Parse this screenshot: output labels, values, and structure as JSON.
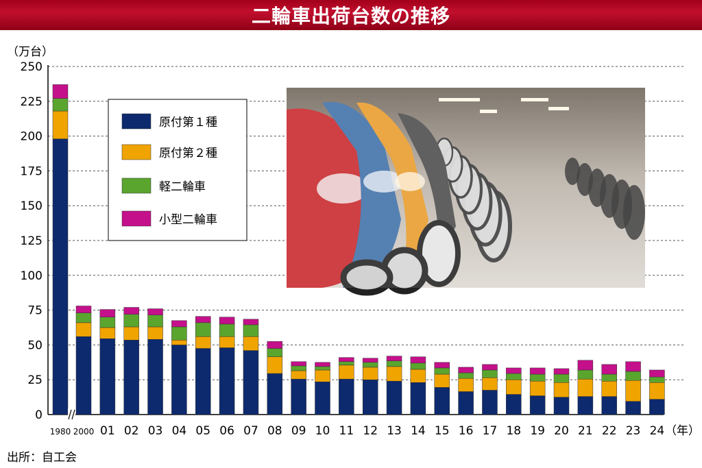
{
  "header": {
    "title": "二輪車出荷台数の推移"
  },
  "footer": {
    "source": "出所：自工会"
  },
  "chart_data": {
    "type": "bar",
    "stacked": true,
    "title": "二輪車出荷台数の推移",
    "yunit": "（万台）",
    "xunit": "（年）",
    "ylim": [
      0,
      250
    ],
    "yticks": [
      0,
      25,
      50,
      75,
      100,
      125,
      150,
      175,
      200,
      225,
      250
    ],
    "grid": true,
    "axis_break": "after 1980",
    "categories": [
      "1980",
      "2000",
      "01",
      "02",
      "03",
      "04",
      "05",
      "06",
      "07",
      "08",
      "09",
      "10",
      "11",
      "12",
      "13",
      "14",
      "15",
      "16",
      "17",
      "18",
      "19",
      "20",
      "21",
      "22",
      "23",
      "24"
    ],
    "series": [
      {
        "name": "原付第１種",
        "color": "#0d2a6e",
        "values": [
          198,
          56,
          54.5,
          53.5,
          54,
          50,
          47.5,
          48,
          46,
          29.5,
          25.5,
          23.5,
          25.5,
          25,
          24,
          23,
          19.5,
          16.5,
          17.5,
          14.5,
          13.5,
          12.5,
          13,
          13,
          9.5,
          11
        ]
      },
      {
        "name": "原付第２種",
        "color": "#f0a400",
        "values": [
          20,
          10,
          8,
          9.5,
          9,
          3.5,
          8.5,
          8,
          10,
          12,
          6,
          8.5,
          10,
          9,
          10.5,
          9.5,
          9.5,
          9.5,
          9,
          10.5,
          10.5,
          10.5,
          12.5,
          11,
          15,
          12
        ]
      },
      {
        "name": "軽二輪車",
        "color": "#5aa52e",
        "values": [
          9,
          7,
          7.5,
          9,
          8.5,
          9.5,
          10,
          9,
          8.5,
          6,
          3.5,
          2.5,
          2.5,
          3.5,
          4,
          4.5,
          4.5,
          4,
          5.5,
          4.5,
          5,
          6,
          6.5,
          5,
          6.5,
          4
        ]
      },
      {
        "name": "小型二輪車",
        "color": "#c4108a",
        "values": [
          10,
          5,
          5.5,
          5,
          4.5,
          4.5,
          4.5,
          5,
          4,
          5,
          3,
          3,
          3,
          3,
          3.5,
          4.5,
          4,
          4,
          4,
          4,
          4.5,
          4,
          7,
          7,
          7,
          5
        ]
      }
    ]
  },
  "photo": {
    "alt": "row-of-scooters-photo"
  }
}
